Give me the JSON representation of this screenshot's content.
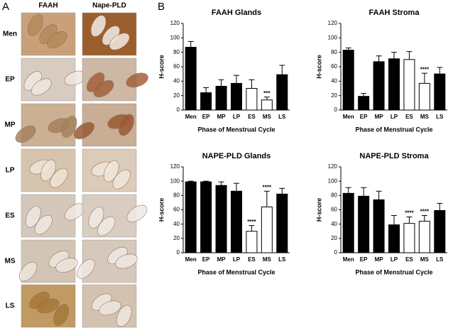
{
  "panel_a": {
    "label": "A",
    "columns": [
      "FAAH",
      "Nape-PLD"
    ],
    "rows": [
      "Men",
      "EP",
      "MP",
      "LP",
      "ES",
      "MS",
      "LS"
    ]
  },
  "panel_b": {
    "label": "B"
  },
  "chart_data": [
    {
      "type": "bar",
      "title": "FAAH Glands",
      "ylabel": "H-score",
      "xlabel": "Phase of Menstrual Cycle",
      "categories": [
        "Men",
        "EP",
        "MP",
        "LP",
        "ES",
        "MS",
        "LS"
      ],
      "values": [
        87,
        24,
        33,
        37,
        30,
        14,
        49
      ],
      "errors": [
        8,
        7,
        9,
        11,
        12,
        4,
        13
      ],
      "colors": [
        "#000000",
        "#000000",
        "#000000",
        "#000000",
        "#ffffff",
        "#ffffff",
        "#000000"
      ],
      "annotations": [
        null,
        null,
        null,
        null,
        null,
        "***",
        null
      ],
      "ylim": [
        0,
        120
      ],
      "yticks": [
        0,
        20,
        40,
        60,
        80,
        100,
        120
      ]
    },
    {
      "type": "bar",
      "title": "FAAH Stroma",
      "ylabel": "H-score",
      "xlabel": "Phase of Menstrual Cycle",
      "categories": [
        "Men",
        "EP",
        "MP",
        "LP",
        "ES",
        "MS",
        "LS"
      ],
      "values": [
        83,
        19,
        67,
        71,
        70,
        37,
        50
      ],
      "errors": [
        3,
        4,
        8,
        9,
        11,
        14,
        9
      ],
      "colors": [
        "#000000",
        "#000000",
        "#000000",
        "#000000",
        "#ffffff",
        "#ffffff",
        "#000000"
      ],
      "annotations": [
        null,
        null,
        null,
        null,
        null,
        "****",
        null
      ],
      "ylim": [
        0,
        120
      ],
      "yticks": [
        0,
        20,
        40,
        60,
        80,
        100,
        120
      ]
    },
    {
      "type": "bar",
      "title": "NAPE-PLD Glands",
      "ylabel": "H-score",
      "xlabel": "Phase of Menstrual Cycle",
      "categories": [
        "Men",
        "EP",
        "MP",
        "LP",
        "ES",
        "MS",
        "LS"
      ],
      "values": [
        99,
        99,
        94,
        86,
        30,
        64,
        82
      ],
      "errors": [
        1,
        1,
        5,
        11,
        8,
        22,
        8
      ],
      "colors": [
        "#000000",
        "#000000",
        "#000000",
        "#000000",
        "#ffffff",
        "#ffffff",
        "#000000"
      ],
      "annotations": [
        null,
        null,
        null,
        null,
        "****",
        "****",
        null
      ],
      "ylim": [
        0,
        120
      ],
      "yticks": [
        0,
        20,
        40,
        60,
        80,
        100,
        120
      ]
    },
    {
      "type": "bar",
      "title": "NAPE-PLD Stroma",
      "ylabel": "H-score",
      "xlabel": "Phase of Menstrual Cycle",
      "categories": [
        "Men",
        "EP",
        "MP",
        "LP",
        "ES",
        "MS",
        "LS"
      ],
      "values": [
        83,
        79,
        74,
        39,
        41,
        44,
        59
      ],
      "errors": [
        8,
        12,
        12,
        13,
        9,
        8,
        10
      ],
      "colors": [
        "#000000",
        "#000000",
        "#000000",
        "#000000",
        "#ffffff",
        "#ffffff",
        "#000000"
      ],
      "annotations": [
        null,
        null,
        null,
        null,
        "****",
        "****",
        null
      ],
      "ylim": [
        0,
        120
      ],
      "yticks": [
        0,
        20,
        40,
        60,
        80,
        100,
        120
      ]
    }
  ]
}
